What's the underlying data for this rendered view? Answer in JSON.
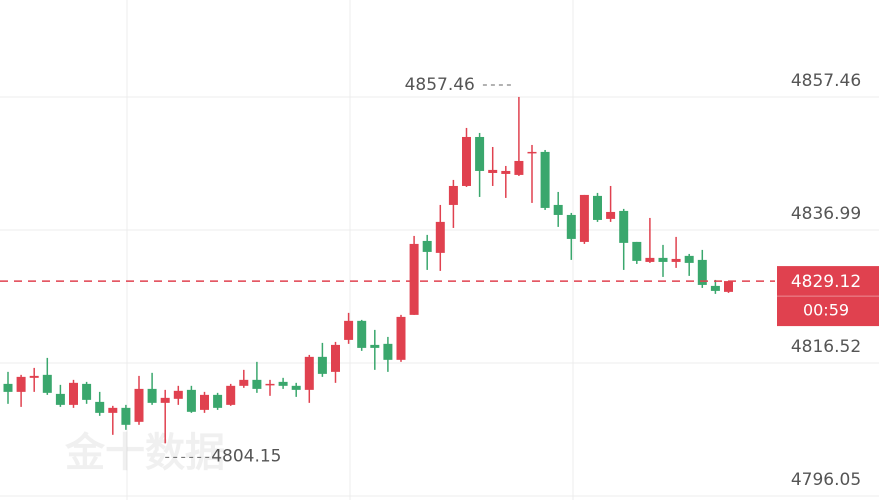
{
  "chart_data": {
    "type": "candlestick",
    "watermark": "金十数据",
    "countdown": "00:59",
    "up_color": "#e0414f",
    "down_color": "#3aa76d",
    "ylim": [
      4795.43,
      4872.38
    ],
    "yticks": [
      4857.46,
      4836.99,
      4816.52,
      4796.05
    ],
    "grid": true,
    "open": [
      4813.3,
      4812.07,
      4814.23,
      4814.69,
      4811.76,
      4810.07,
      4813.3,
      4810.53,
      4808.84,
      4809.61,
      4807.46,
      4812.53,
      4810.38,
      4811.0,
      4812.38,
      4809.3,
      4811.61,
      4810.07,
      4813.0,
      4813.92,
      4813.15,
      4813.61,
      4813.0,
      4812.38,
      4817.46,
      4815.15,
      4820.07,
      4823.0,
      4819.3,
      4819.46,
      4817.0,
      4823.92,
      4835.3,
      4833.46,
      4840.84,
      4843.76,
      4851.3,
      4845.76,
      4845.61,
      4845.46,
      4848.84,
      4849.0,
      4840.84,
      4839.3,
      4835.15,
      4842.23,
      4838.69,
      4839.92,
      4835.15,
      4832.07,
      4832.69,
      4832.07,
      4833.0,
      4832.38,
      4828.38,
      4827.46
    ],
    "high": [
      4815.15,
      4814.69,
      4815.76,
      4817.3,
      4813.15,
      4813.92,
      4813.61,
      4812.07,
      4809.92,
      4810.07,
      4814.53,
      4815.0,
      4812.38,
      4813.0,
      4813.0,
      4812.07,
      4811.92,
      4813.3,
      4815.46,
      4816.69,
      4813.92,
      4814.23,
      4813.46,
      4817.76,
      4819.61,
      4819.76,
      4824.23,
      4823.15,
      4821.61,
      4820.53,
      4823.92,
      4836.07,
      4836.23,
      4840.84,
      4844.69,
      4852.69,
      4851.92,
      4849.76,
      4846.84,
      4857.46,
      4850.07,
      4849.3,
      4842.84,
      4839.61,
      4842.38,
      4842.69,
      4843.76,
      4840.23,
      4835.15,
      4838.84,
      4834.69,
      4835.92,
      4833.3,
      4833.92,
      4829.3,
      4829.12
    ],
    "low": [
      4810.23,
      4809.76,
      4812.07,
      4811.61,
      4809.76,
      4809.61,
      4810.23,
      4808.38,
      4805.46,
      4806.23,
      4807.0,
      4810.07,
      4804.15,
      4810.07,
      4808.84,
      4808.84,
      4809.3,
      4809.92,
      4812.69,
      4811.92,
      4811.46,
      4812.53,
      4811.3,
      4810.38,
      4814.38,
      4813.46,
      4819.46,
      4818.38,
      4815.46,
      4815.15,
      4816.69,
      4823.92,
      4830.84,
      4830.69,
      4837.3,
      4843.61,
      4842.07,
      4843.76,
      4841.92,
      4845.3,
      4841.15,
      4840.07,
      4837.46,
      4832.38,
      4834.84,
      4838.23,
      4838.23,
      4830.84,
      4831.76,
      4831.92,
      4829.76,
      4831.15,
      4829.92,
      4828.07,
      4827.15,
      4827.3
    ],
    "close": [
      4812.07,
      4814.38,
      4814.53,
      4811.92,
      4810.07,
      4813.46,
      4810.84,
      4808.84,
      4809.61,
      4807.0,
      4812.53,
      4810.38,
      4811.15,
      4812.23,
      4809.0,
      4811.61,
      4809.61,
      4813.0,
      4813.92,
      4812.53,
      4813.3,
      4813.0,
      4812.38,
      4817.46,
      4814.84,
      4819.3,
      4823.0,
      4818.84,
      4818.84,
      4817.0,
      4823.61,
      4834.84,
      4833.61,
      4838.23,
      4843.76,
      4851.3,
      4846.07,
      4846.23,
      4846.07,
      4847.61,
      4849.0,
      4840.38,
      4839.3,
      4835.61,
      4842.38,
      4838.53,
      4839.76,
      4835.0,
      4832.23,
      4832.69,
      4832.07,
      4832.53,
      4831.92,
      4828.53,
      4827.61,
      4829.12
    ]
  }
}
